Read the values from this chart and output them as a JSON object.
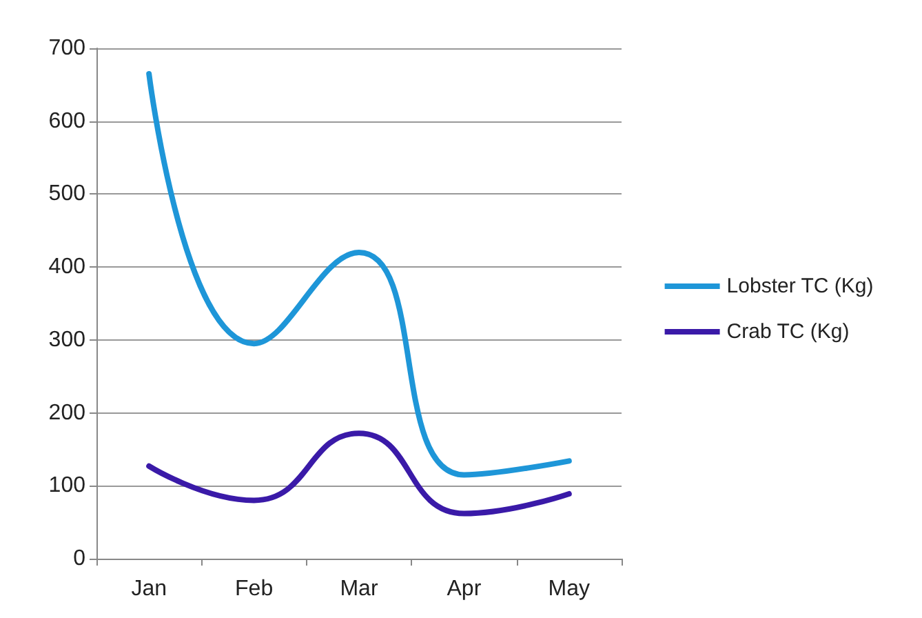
{
  "chart_data": {
    "type": "line",
    "categories": [
      "Jan",
      "Feb",
      "Mar",
      "Apr",
      "May"
    ],
    "series": [
      {
        "name": "Lobster TC (Kg)",
        "color": "#1e96d8",
        "values": [
          665,
          295,
          420,
          115,
          134
        ]
      },
      {
        "name": "Crab TC (Kg)",
        "color": "#3a1aa8",
        "values": [
          127,
          80,
          172,
          62,
          89
        ]
      }
    ],
    "ylim": [
      0,
      700
    ],
    "yticks": [
      0,
      100,
      200,
      300,
      400,
      500,
      600,
      700
    ],
    "grid": "y",
    "legend": "right",
    "marker": "none",
    "line_style": "solid"
  }
}
